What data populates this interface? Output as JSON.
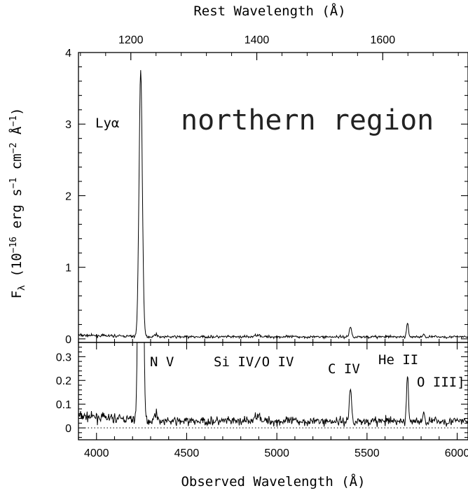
{
  "chart_data": {
    "type": "line",
    "region_label": "northern region",
    "top_axis": {
      "label": "Rest Wavelength (Å)",
      "ticks": [
        1200,
        1400,
        1600
      ],
      "observed_per_rest": 3.492
    },
    "x": {
      "label": "Observed Wavelength (Å)",
      "range": [
        3900,
        6060
      ],
      "ticks": [
        4000,
        4500,
        5000,
        5500,
        6000
      ]
    },
    "y_label_parts": [
      "F",
      "λ",
      " (10",
      "−16",
      " erg s",
      "−1",
      " cm",
      "−2",
      " Å",
      "−1",
      ")"
    ],
    "panels": [
      {
        "name": "full",
        "ylim": [
          -0.05,
          4.0
        ],
        "yticks": [
          0,
          1,
          2,
          3,
          4
        ]
      },
      {
        "name": "zoom",
        "ylim": [
          -0.05,
          0.36
        ],
        "yticks": [
          0,
          0.1,
          0.2,
          0.3
        ],
        "zero_line": "dotted"
      }
    ],
    "continuum": {
      "level": 0.028,
      "noise": 0.013,
      "blue_excess": 0.022
    },
    "emission_lines": [
      {
        "label": "Lyα",
        "center": 4245,
        "peak": 3.72,
        "width": 9
      },
      {
        "label": "N V",
        "center": 4330,
        "peak": 0.035,
        "width": 8
      },
      {
        "label": "Si IV/O IV",
        "center": 4895,
        "peak": 0.03,
        "width": 14
      },
      {
        "label": "C IV",
        "center": 5408,
        "peak": 0.14,
        "width": 6
      },
      {
        "label": "He II",
        "center": 5725,
        "peak": 0.195,
        "width": 5
      },
      {
        "label": "O III]",
        "center": 5815,
        "peak": 0.03,
        "width": 5
      }
    ]
  }
}
